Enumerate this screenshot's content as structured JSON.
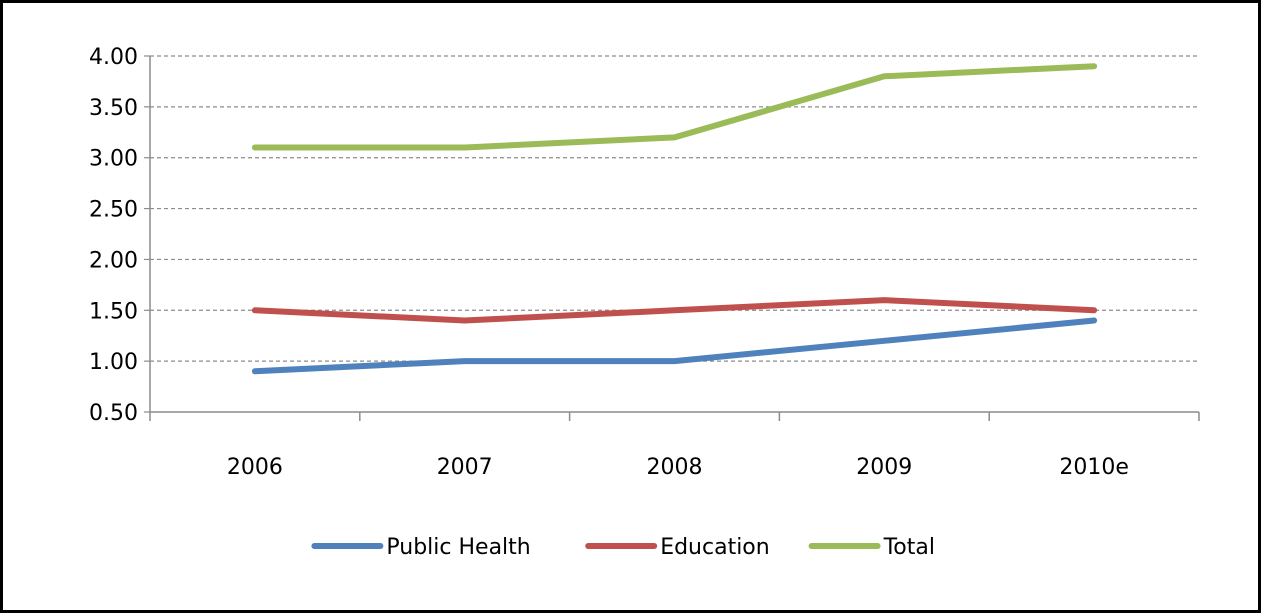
{
  "chart_data": {
    "type": "line",
    "categories": [
      "2006",
      "2007",
      "2008",
      "2009",
      "2010e"
    ],
    "y_ticks": [
      "0.50",
      "1.00",
      "1.50",
      "2.00",
      "2.50",
      "3.00",
      "3.50",
      "4.00"
    ],
    "ylim": [
      0.5,
      4.0
    ],
    "grid": true,
    "legend_position": "bottom",
    "series": [
      {
        "name": "Public Health",
        "color": "#4F81BD",
        "values": [
          0.9,
          1.0,
          1.0,
          1.2,
          1.4
        ]
      },
      {
        "name": "Education",
        "color": "#C0504D",
        "values": [
          1.5,
          1.4,
          1.5,
          1.6,
          1.5
        ]
      },
      {
        "name": "Total",
        "color": "#9BBB59",
        "values": [
          3.1,
          3.1,
          3.2,
          3.8,
          3.9
        ]
      }
    ]
  }
}
